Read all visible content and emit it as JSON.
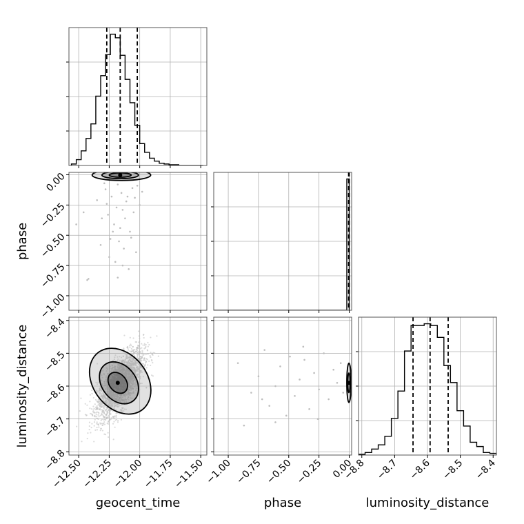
{
  "chart_data": {
    "type": "corner",
    "parameters": [
      "geocent_time",
      "phase",
      "luminosity_distance"
    ],
    "grid": true,
    "colors": {
      "line": "#000000",
      "grid": "#b0b0b0",
      "points": "#bdbdbd"
    },
    "ranges": {
      "geocent_time": [
        -12.58,
        -11.45
      ],
      "phase": [
        -1.12,
        0.02
      ],
      "luminosity_distance": [
        -8.81,
        -8.39
      ]
    },
    "ticks": {
      "geocent_time": {
        "values": [
          -12.5,
          -12.25,
          -12.0,
          -11.75,
          -11.5
        ],
        "labels": [
          "−12.50",
          "−12.25",
          "−12.00",
          "−11.75",
          "−11.50"
        ]
      },
      "phase": {
        "values": [
          -1.0,
          -0.75,
          -0.5,
          -0.25,
          0.0
        ],
        "labels": [
          "−1.00",
          "−0.75",
          "−0.50",
          "−0.25",
          "0.00"
        ]
      },
      "luminosity_distance": {
        "values": [
          -8.8,
          -8.7,
          -8.6,
          -8.5,
          -8.4
        ],
        "labels": [
          "−8.8",
          "−8.7",
          "−8.6",
          "−8.5",
          "−8.4"
        ]
      }
    },
    "histograms": [
      {
        "param": "geocent_time",
        "quantiles": [
          -12.27,
          -12.16,
          -12.02
        ],
        "bin_edges": [
          -12.56,
          -12.52,
          -12.48,
          -12.44,
          -12.4,
          -12.36,
          -12.32,
          -12.28,
          -12.24,
          -12.2,
          -12.16,
          -12.12,
          -12.08,
          -12.04,
          -12.0,
          -11.96,
          -11.92,
          -11.88,
          -11.84,
          -11.8,
          -11.76,
          -11.72,
          -11.68,
          -11.64,
          -11.6,
          -11.56,
          -11.52,
          -11.48
        ],
        "counts": [
          2,
          8,
          20,
          37,
          57,
          95,
          123,
          152,
          180,
          175,
          151,
          118,
          86,
          55,
          30,
          18,
          10,
          6,
          3,
          2,
          1,
          1,
          0,
          0,
          0,
          0,
          0
        ]
      },
      {
        "param": "phase",
        "quantiles": [
          -0.005,
          -0.002,
          0.0
        ],
        "bin_edges": [
          -1.12,
          -0.02,
          0.0
        ],
        "counts": [
          0,
          170
        ]
      },
      {
        "param": "luminosity_distance",
        "quantiles": [
          -8.644,
          -8.592,
          -8.537
        ],
        "bin_edges": [
          -8.81,
          -8.79,
          -8.77,
          -8.75,
          -8.73,
          -8.71,
          -8.69,
          -8.67,
          -8.65,
          -8.63,
          -8.61,
          -8.59,
          -8.57,
          -8.55,
          -8.53,
          -8.51,
          -8.49,
          -8.47,
          -8.45,
          -8.43,
          -8.41,
          -8.39
        ],
        "counts": [
          1,
          3,
          7,
          12,
          22,
          43,
          75,
          122,
          152,
          152,
          154,
          152,
          138,
          105,
          85,
          52,
          34,
          15,
          10,
          3,
          2
        ]
      }
    ],
    "scatter_panels": [
      {
        "x": "geocent_time",
        "y": "phase",
        "points": [
          [
            -12.52,
            -0.41
          ],
          [
            -12.46,
            -0.31
          ],
          [
            -12.43,
            -0.87
          ],
          [
            -12.42,
            -0.86
          ],
          [
            -12.35,
            -0.21
          ],
          [
            -12.31,
            -0.36
          ],
          [
            -12.28,
            -0.12
          ],
          [
            -12.26,
            -0.33
          ],
          [
            -12.25,
            -0.68
          ],
          [
            -12.24,
            -0.53
          ],
          [
            -12.23,
            -0.18
          ],
          [
            -12.21,
            -0.41
          ],
          [
            -12.2,
            -0.72
          ],
          [
            -12.19,
            -0.27
          ],
          [
            -12.18,
            -0.08
          ],
          [
            -12.17,
            -0.55
          ],
          [
            -12.16,
            -0.44
          ],
          [
            -12.15,
            -0.15
          ],
          [
            -12.14,
            -0.29
          ],
          [
            -12.13,
            -0.61
          ],
          [
            -12.12,
            -0.36
          ],
          [
            -12.11,
            -0.22
          ],
          [
            -12.1,
            -0.18
          ],
          [
            -12.09,
            -0.78
          ],
          [
            -12.08,
            -0.47
          ],
          [
            -12.06,
            -0.11
          ],
          [
            -12.05,
            -0.31
          ],
          [
            -12.04,
            -0.19
          ],
          [
            -12.03,
            -0.64
          ],
          [
            -12.02,
            -0.09
          ],
          [
            -12.0,
            -0.25
          ],
          [
            -11.98,
            -0.14
          ],
          [
            -12.14,
            -0.75
          ],
          [
            -12.22,
            -0.47
          ],
          [
            -12.18,
            -0.85
          ],
          [
            -12.29,
            -0.07
          ],
          [
            -12.32,
            -0.58
          ],
          [
            -12.07,
            -0.52
          ],
          [
            -12.12,
            -0.03
          ],
          [
            -12.27,
            -0.24
          ]
        ],
        "contours": [
          {
            "level": "39%",
            "cx": -12.16,
            "cy": -0.002,
            "rx": 0.09,
            "ry": 0.018
          },
          {
            "level": "86%",
            "cx": -12.16,
            "cy": -0.002,
            "rx": 0.15,
            "ry": 0.03
          },
          {
            "level": "99%",
            "cx": -12.15,
            "cy": -0.002,
            "rx": 0.24,
            "ry": 0.045
          }
        ]
      },
      {
        "x": "geocent_time",
        "y": "luminosity_distance",
        "correlation": 0.7,
        "center": [
          -12.16,
          -8.592
        ],
        "spread": [
          0.095,
          0.052
        ],
        "contours": [
          {
            "level": "39%",
            "cx": -12.18,
            "cy": -8.59,
            "rx": 0.07,
            "ry": 0.035
          },
          {
            "level": "86%",
            "cx": -12.17,
            "cy": -8.59,
            "rx": 0.14,
            "ry": 0.07
          },
          {
            "level": "99%",
            "cx": -12.16,
            "cy": -8.585,
            "rx": 0.22,
            "ry": 0.11
          }
        ]
      },
      {
        "x": "phase",
        "y": "luminosity_distance",
        "points": [
          [
            -0.92,
            -8.53
          ],
          [
            -0.87,
            -8.72
          ],
          [
            -0.81,
            -8.62
          ],
          [
            -0.75,
            -8.57
          ],
          [
            -0.7,
            -8.49
          ],
          [
            -0.66,
            -8.66
          ],
          [
            -0.61,
            -8.6
          ],
          [
            -0.57,
            -8.54
          ],
          [
            -0.52,
            -8.69
          ],
          [
            -0.49,
            -8.51
          ],
          [
            -0.45,
            -8.63
          ],
          [
            -0.41,
            -8.58
          ],
          [
            -0.37,
            -8.52
          ],
          [
            -0.33,
            -8.67
          ],
          [
            -0.29,
            -8.56
          ],
          [
            -0.25,
            -8.61
          ],
          [
            -0.21,
            -8.5
          ],
          [
            -0.17,
            -8.64
          ],
          [
            -0.13,
            -8.55
          ],
          [
            -0.1,
            -8.59
          ],
          [
            -0.07,
            -8.53
          ],
          [
            -0.05,
            -8.62
          ],
          [
            -0.72,
            -8.64
          ],
          [
            -0.61,
            -8.71
          ],
          [
            -0.38,
            -8.48
          ],
          [
            -0.26,
            -8.7
          ]
        ],
        "contours": [
          {
            "level": "39%",
            "cx": -0.002,
            "cy": -8.59,
            "rx": 0.01,
            "ry": 0.03
          },
          {
            "level": "86%",
            "cx": -0.002,
            "cy": -8.59,
            "rx": 0.018,
            "ry": 0.06
          }
        ]
      }
    ]
  }
}
